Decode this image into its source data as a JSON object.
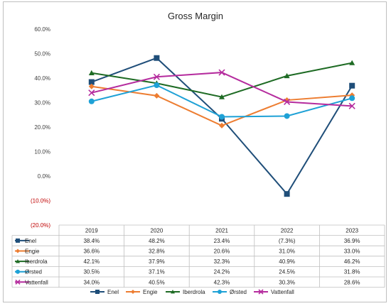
{
  "chart_data": {
    "type": "line",
    "title": "Gross Margin",
    "categories": [
      "2019",
      "2020",
      "2021",
      "2022",
      "2023"
    ],
    "ylim": [
      -20,
      60
    ],
    "yticks": [
      "60.0%",
      "50.0%",
      "40.0%",
      "30.0%",
      "20.0%",
      "10.0%",
      "0.0%",
      "(10.0%)",
      "(20.0%)"
    ],
    "grid": false,
    "legend": "bottom",
    "data_table": true,
    "series": [
      {
        "name": "Enel",
        "color": "#1f4e79",
        "marker": "square",
        "values": [
          38.4,
          48.2,
          23.4,
          -7.3,
          36.9
        ],
        "labels": [
          "38.4%",
          "48.2%",
          "23.4%",
          "(7.3%)",
          "36.9%"
        ]
      },
      {
        "name": "Engie",
        "color": "#ed7d31",
        "marker": "diamond",
        "values": [
          36.6,
          32.8,
          20.6,
          31.0,
          33.0
        ],
        "labels": [
          "36.6%",
          "32.8%",
          "20.6%",
          "31.0%",
          "33.0%"
        ]
      },
      {
        "name": "Iberdrola",
        "color": "#1e6b24",
        "marker": "triangle",
        "values": [
          42.1,
          37.9,
          32.3,
          40.9,
          46.2
        ],
        "labels": [
          "42.1%",
          "37.9%",
          "32.3%",
          "40.9%",
          "46.2%"
        ]
      },
      {
        "name": "Ørsted",
        "color": "#1ea1d6",
        "marker": "circle",
        "values": [
          30.5,
          37.1,
          24.2,
          24.5,
          31.8
        ],
        "labels": [
          "30.5%",
          "37.1%",
          "24.2%",
          "24.5%",
          "31.8%"
        ]
      },
      {
        "name": "Vattenfall",
        "color": "#b52c9e",
        "marker": "x",
        "values": [
          34.0,
          40.5,
          42.3,
          30.3,
          28.6
        ],
        "labels": [
          "34.0%",
          "40.5%",
          "42.3%",
          "30.3%",
          "28.6%"
        ]
      }
    ]
  }
}
